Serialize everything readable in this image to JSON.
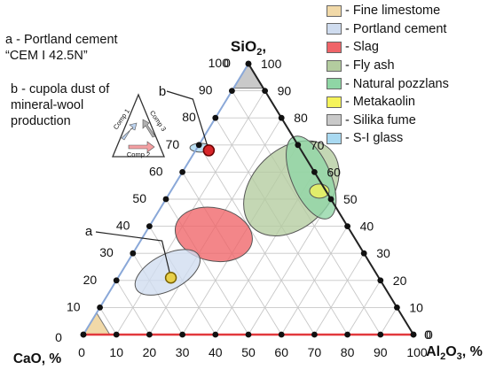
{
  "chart_data": {
    "type": "ternary",
    "axes": {
      "top": {
        "label_main": "SiO",
        "label_sub": "2",
        "label_suffix": ","
      },
      "left": {
        "label": "CaO, %"
      },
      "right": {
        "label_main": "Al",
        "label_sub": "2",
        "label_mid": "O",
        "label_sub2": "3",
        "label_suffix": ", %"
      }
    },
    "ticks": {
      "left_edge": [
        "0",
        "10",
        "20",
        "30",
        "40",
        "50",
        "60",
        "70",
        "80",
        "90",
        "100"
      ],
      "right_edge": [
        "100",
        "90",
        "80",
        "70",
        "60",
        "50",
        "40",
        "30",
        "20",
        "10",
        "0"
      ],
      "bottom_edge": [
        "0",
        "10",
        "20",
        "30",
        "40",
        "50",
        "60",
        "70",
        "80",
        "90",
        "100"
      ]
    },
    "legend": [
      {
        "label": "- Fine limestome",
        "color": "#f1d9a8"
      },
      {
        "label": "- Portland cement",
        "color": "#cfdcef"
      },
      {
        "label": "- Slag",
        "color": "#ef6468"
      },
      {
        "label": "- Fly ash",
        "color": "#b3cc9f"
      },
      {
        "label": "- Natural pozzlans",
        "color": "#8fd6a5"
      },
      {
        "label": "- Metakaolin",
        "color": "#f5f35a"
      },
      {
        "label": "- Silika fume",
        "color": "#c9c9c9"
      },
      {
        "label": "- S-I glass",
        "color": "#a9d9f1"
      }
    ],
    "regions": [
      {
        "name": "Fine limestome",
        "shape": "corner",
        "CaO": [
          100,
          92
        ],
        "SiO2": [
          0,
          8
        ],
        "Al2O3": [
          0,
          8
        ]
      },
      {
        "name": "Portland cement",
        "shape": "ellipse",
        "center": {
          "CaO": 63,
          "SiO2": 23,
          "Al2O3": 14
        }
      },
      {
        "name": "Slag",
        "shape": "ellipse",
        "center": {
          "CaO": 42,
          "SiO2": 37,
          "Al2O3": 21
        }
      },
      {
        "name": "Fly ash",
        "shape": "ellipse",
        "center": {
          "CaO": 10,
          "SiO2": 54,
          "Al2O3": 36
        }
      },
      {
        "name": "Natural pozzlans",
        "shape": "ellipse",
        "center": {
          "CaO": 2,
          "SiO2": 58,
          "Al2O3": 40
        }
      },
      {
        "name": "Metakaolin",
        "shape": "ellipse",
        "center": {
          "CaO": 2,
          "SiO2": 53,
          "Al2O3": 45
        }
      },
      {
        "name": "Silika fume",
        "shape": "corner",
        "SiO2": [
          100,
          91
        ]
      },
      {
        "name": "S-I glass",
        "shape": "ellipse",
        "center": {
          "CaO": 30,
          "SiO2": 69,
          "Al2O3": 1
        }
      }
    ],
    "points": [
      {
        "label": "a",
        "CaO": 63,
        "SiO2": 21,
        "Al2O3": 16
      },
      {
        "label": "b",
        "CaO": 28,
        "SiO2": 68,
        "Al2O3": 4
      }
    ],
    "inset": {
      "labels": [
        "Comp 1",
        "Comp 3",
        "Comp 2"
      ]
    },
    "grid": true
  },
  "notes": {
    "a_line1": "a - Portland cement",
    "a_line2": "“CEM I 42.5N”",
    "b_line1": "b - cupola dust of",
    "b_line2": "mineral-wool",
    "b_line3": "production"
  }
}
